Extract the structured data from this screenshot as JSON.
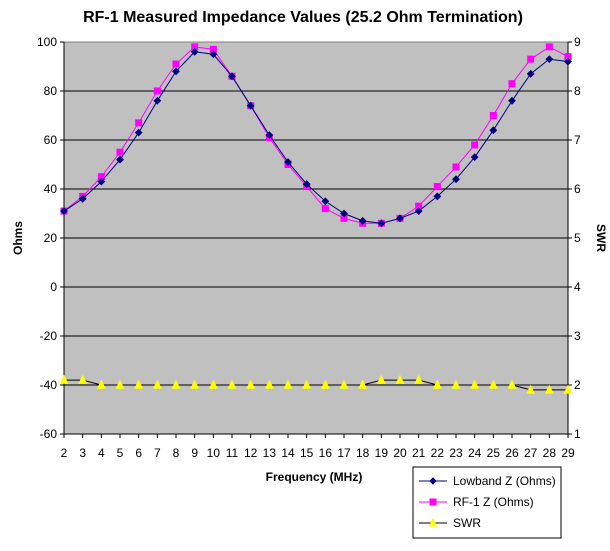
{
  "chart_data": {
    "type": "line",
    "title": "RF-1 Measured Impedance Values (25.2 Ohm Termination)",
    "xlabel": "Frequency (MHz)",
    "ylabel": "Ohms",
    "y2label": "SWR",
    "x": [
      2,
      3,
      4,
      5,
      6,
      7,
      8,
      9,
      10,
      11,
      12,
      13,
      14,
      15,
      16,
      17,
      18,
      19,
      20,
      21,
      22,
      23,
      24,
      25,
      26,
      27,
      28,
      29
    ],
    "ylim": [
      -60,
      100
    ],
    "y_ticks": [
      "-60",
      "-40",
      "-20",
      "0",
      "20",
      "40",
      "60",
      "80",
      "100"
    ],
    "y2lim": [
      1,
      9
    ],
    "y2_ticks": [
      "1",
      "2",
      "3",
      "4",
      "5",
      "6",
      "7",
      "8",
      "9"
    ],
    "x_ticks": [
      "2",
      "3",
      "4",
      "5",
      "6",
      "7",
      "8",
      "9",
      "10",
      "11",
      "12",
      "13",
      "14",
      "15",
      "16",
      "17",
      "18",
      "19",
      "20",
      "21",
      "22",
      "23",
      "24",
      "25",
      "26",
      "27",
      "28",
      "29"
    ],
    "grid": true,
    "legend_position": "bottom-right",
    "plot_background": "#c0c0c0",
    "series": [
      {
        "name": "Lowband Z (Ohms)",
        "axis": "left",
        "color": "#000080",
        "marker": "diamond",
        "values": [
          31,
          36,
          43,
          52,
          63,
          76,
          88,
          96,
          95,
          86,
          74,
          62,
          51,
          42,
          35,
          30,
          27,
          26,
          28,
          31,
          37,
          44,
          53,
          64,
          76,
          87,
          93,
          92
        ]
      },
      {
        "name": "RF-1 Z (Ohms)",
        "axis": "left",
        "color": "#ff00ff",
        "marker": "square",
        "values": [
          31,
          37,
          45,
          55,
          67,
          80,
          91,
          98,
          97,
          86,
          74,
          61,
          50,
          41,
          32,
          28,
          26,
          26,
          28,
          33,
          41,
          49,
          58,
          70,
          83,
          93,
          98,
          94
        ]
      },
      {
        "name": "SWR",
        "axis": "right",
        "color": "#ffff00",
        "marker": "triangle",
        "values": [
          2.1,
          2.1,
          2.0,
          2.0,
          2.0,
          2.0,
          2.0,
          2.0,
          2.0,
          2.0,
          2.0,
          2.0,
          2.0,
          2.0,
          2.0,
          2.0,
          2.0,
          2.1,
          2.1,
          2.1,
          2.0,
          2.0,
          2.0,
          2.0,
          2.0,
          1.9,
          1.9,
          1.9
        ]
      }
    ]
  }
}
